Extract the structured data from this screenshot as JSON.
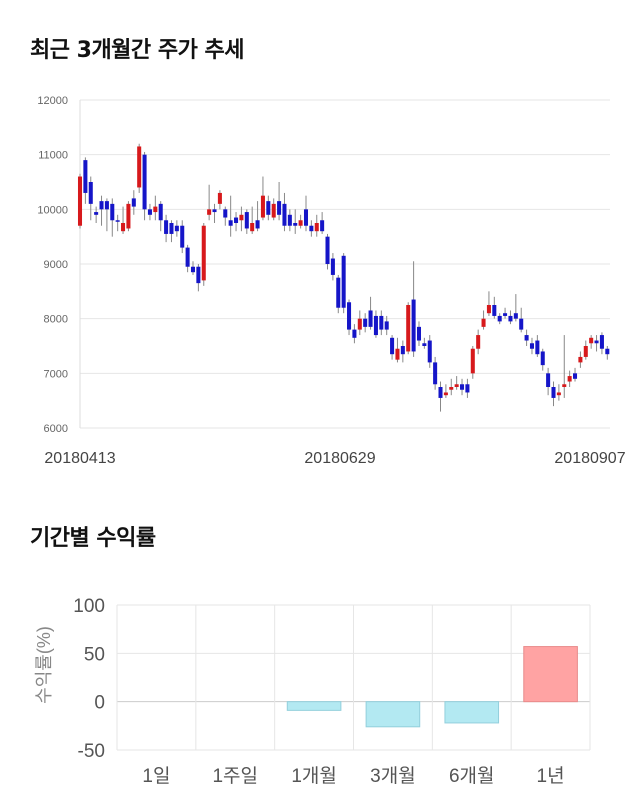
{
  "section1": {
    "title": "최근 3개월간 주가 추세"
  },
  "section2": {
    "title": "기간별 수익률"
  },
  "chart_data": [
    {
      "type": "candlestick",
      "title": "최근 3개월간 주가 추세",
      "ylim": [
        6000,
        12000
      ],
      "y_ticks": [
        12000,
        11000,
        10000,
        9000,
        8000,
        7000,
        6000
      ],
      "x_tick_labels": [
        "20180413",
        "20180629",
        "20180907"
      ],
      "colors": {
        "up": "#d7191c",
        "down": "#1515c8",
        "wick": "#888888",
        "grid": "#e6e6e6"
      },
      "candles": [
        [
          9700,
          10600,
          9650,
          10650
        ],
        [
          10900,
          10300,
          10100,
          10950
        ],
        [
          10500,
          10100,
          9800,
          10600
        ],
        [
          9950,
          9900,
          9750,
          10050
        ],
        [
          10150,
          10000,
          9700,
          10250
        ],
        [
          10150,
          10000,
          9600,
          10200
        ],
        [
          10100,
          9800,
          9500,
          10200
        ],
        [
          9800,
          9780,
          9600,
          9900
        ],
        [
          9600,
          9750,
          9550,
          10050
        ],
        [
          9650,
          10100,
          9600,
          10150
        ],
        [
          10200,
          10050,
          9900,
          10350
        ],
        [
          10400,
          11150,
          10300,
          11200
        ],
        [
          11000,
          10000,
          9800,
          11050
        ],
        [
          10000,
          9900,
          9800,
          10100
        ],
        [
          9950,
          10050,
          9800,
          10250
        ],
        [
          10100,
          9800,
          9600,
          10150
        ],
        [
          9800,
          9550,
          9400,
          9900
        ],
        [
          9750,
          9550,
          9400,
          9800
        ],
        [
          9700,
          9600,
          9500,
          9800
        ],
        [
          9700,
          9300,
          9200,
          9800
        ],
        [
          9300,
          8950,
          8850,
          9350
        ],
        [
          8950,
          8850,
          8800,
          9050
        ],
        [
          8950,
          8650,
          8500,
          9000
        ],
        [
          8700,
          9700,
          8600,
          9750
        ],
        [
          9900,
          10000,
          9800,
          10450
        ],
        [
          10000,
          9950,
          9750,
          10100
        ],
        [
          10100,
          10300,
          10000,
          10350
        ],
        [
          10000,
          9850,
          9700,
          10050
        ],
        [
          9800,
          9700,
          9500,
          10250
        ],
        [
          9850,
          9750,
          9600,
          9950
        ],
        [
          9800,
          9900,
          9600,
          10050
        ],
        [
          9950,
          9650,
          9550,
          10000
        ],
        [
          9600,
          9750,
          9550,
          10050
        ],
        [
          9800,
          9650,
          9600,
          10150
        ],
        [
          9850,
          10250,
          9800,
          10600
        ],
        [
          10150,
          9900,
          9800,
          10250
        ],
        [
          9850,
          10100,
          9800,
          10200
        ],
        [
          10150,
          9900,
          9800,
          10500
        ],
        [
          10100,
          9700,
          9600,
          10300
        ],
        [
          9900,
          9700,
          9600,
          10000
        ],
        [
          9750,
          9700,
          9550,
          10000
        ],
        [
          9700,
          9800,
          9650,
          9900
        ],
        [
          10000,
          9700,
          9600,
          10250
        ],
        [
          9700,
          9600,
          9500,
          9800
        ],
        [
          9600,
          9750,
          9500,
          9900
        ],
        [
          9800,
          9600,
          9550,
          9950
        ],
        [
          9500,
          9000,
          8900,
          9550
        ],
        [
          9100,
          8800,
          8700,
          9200
        ],
        [
          8750,
          8200,
          8100,
          8800
        ],
        [
          9150,
          8200,
          8100,
          9200
        ],
        [
          8300,
          7800,
          7700,
          8350
        ],
        [
          7800,
          7650,
          7550,
          7900
        ],
        [
          7800,
          8000,
          7700,
          8150
        ],
        [
          8000,
          7850,
          7750,
          8100
        ],
        [
          8150,
          7850,
          7800,
          8400
        ],
        [
          8050,
          7700,
          7650,
          8150
        ],
        [
          8050,
          7800,
          7700,
          8150
        ],
        [
          7950,
          7800,
          7700,
          8050
        ],
        [
          7650,
          7350,
          7250,
          7700
        ],
        [
          7250,
          7450,
          7200,
          7650
        ],
        [
          7500,
          7350,
          7200,
          7600
        ],
        [
          7400,
          8250,
          7350,
          8300
        ],
        [
          8350,
          7400,
          7300,
          9050
        ],
        [
          7850,
          7600,
          7500,
          7950
        ],
        [
          7550,
          7500,
          7450,
          7650
        ],
        [
          7600,
          7200,
          7100,
          7700
        ],
        [
          7200,
          6800,
          6700,
          7300
        ],
        [
          6750,
          6550,
          6300,
          6850
        ],
        [
          6600,
          6650,
          6550,
          6800
        ],
        [
          6700,
          6750,
          6600,
          6900
        ],
        [
          6750,
          6800,
          6700,
          6950
        ],
        [
          6800,
          6700,
          6600,
          6900
        ],
        [
          6800,
          6650,
          6550,
          6900
        ],
        [
          7000,
          7450,
          6900,
          7500
        ],
        [
          7450,
          7700,
          7350,
          7800
        ],
        [
          7850,
          8000,
          7800,
          8150
        ],
        [
          8100,
          8250,
          8050,
          8500
        ],
        [
          8250,
          8050,
          8000,
          8400
        ],
        [
          8050,
          7950,
          7900,
          8100
        ],
        [
          8100,
          8050,
          8000,
          8200
        ],
        [
          8050,
          7950,
          7900,
          8150
        ],
        [
          8100,
          8000,
          7950,
          8450
        ],
        [
          8000,
          7800,
          7750,
          8200
        ],
        [
          7700,
          7600,
          7500,
          7800
        ],
        [
          7550,
          7450,
          7350,
          7650
        ],
        [
          7600,
          7350,
          7300,
          7700
        ],
        [
          7400,
          7150,
          7050,
          7450
        ],
        [
          7000,
          6750,
          6600,
          7100
        ],
        [
          6750,
          6550,
          6400,
          6850
        ],
        [
          6600,
          6650,
          6500,
          6800
        ],
        [
          6750,
          6800,
          6550,
          7700
        ],
        [
          6850,
          6950,
          6750,
          7050
        ],
        [
          7000,
          6900,
          6850,
          7100
        ],
        [
          7200,
          7300,
          7100,
          7400
        ],
        [
          7300,
          7500,
          7250,
          7600
        ],
        [
          7550,
          7650,
          7450,
          7700
        ],
        [
          7600,
          7550,
          7400,
          7700
        ],
        [
          7700,
          7450,
          7350,
          7750
        ],
        [
          7450,
          7350,
          7250,
          7500
        ]
      ]
    },
    {
      "type": "bar",
      "title": "기간별 수익률",
      "categories": [
        "1일",
        "1주일",
        "1개월",
        "3개월",
        "6개월",
        "1년"
      ],
      "values": [
        0,
        0,
        -9,
        -26,
        -22,
        57
      ],
      "ylabel": "수익률(%)",
      "ylim": [
        -50,
        100
      ],
      "y_ticks": [
        100,
        50,
        0,
        -50
      ],
      "colors": {
        "positive": "#ffa3a3",
        "negative": "#b3e9f2",
        "positive_edge": "#e88a8a",
        "negative_edge": "#93cfdc",
        "grid": "#e6e6e6"
      }
    }
  ]
}
